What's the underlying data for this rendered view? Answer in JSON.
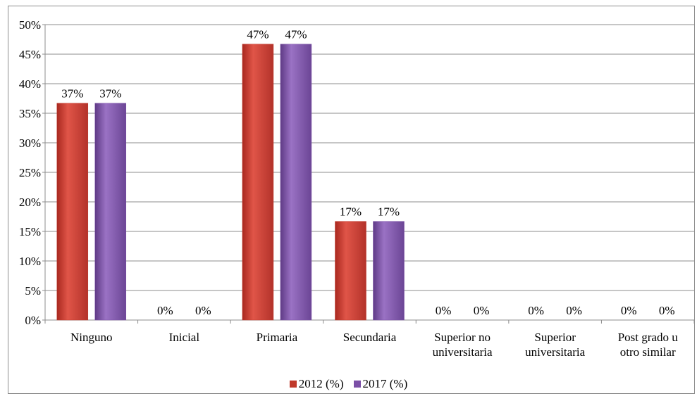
{
  "chart_data": {
    "type": "bar",
    "title": "",
    "xlabel": "",
    "ylabel": "",
    "ylim": [
      0,
      50
    ],
    "yticks": [
      "0%",
      "5%",
      "10%",
      "15%",
      "20%",
      "25%",
      "30%",
      "35%",
      "40%",
      "45%",
      "50%"
    ],
    "grid": true,
    "legend_position": "bottom",
    "categories": [
      [
        "Ninguno"
      ],
      [
        "Inicial"
      ],
      [
        "Primaria"
      ],
      [
        "Secundaria"
      ],
      [
        "Superior no",
        "universitaria"
      ],
      [
        "Superior",
        "universitaria"
      ],
      [
        "Post grado u",
        "otro similar"
      ]
    ],
    "series": [
      {
        "name": "2012 (%)",
        "color": "#c0392b",
        "values": [
          36.7,
          0,
          46.7,
          16.7,
          0,
          0,
          0
        ],
        "labels": [
          "37%",
          "0%",
          "47%",
          "17%",
          "0%",
          "0%",
          "0%"
        ]
      },
      {
        "name": "2017 (%)",
        "color": "#7b4fa6",
        "values": [
          36.7,
          0,
          46.7,
          16.7,
          0,
          0,
          0
        ],
        "labels": [
          "37%",
          "0%",
          "47%",
          "17%",
          "0%",
          "0%",
          "0%"
        ]
      }
    ]
  }
}
